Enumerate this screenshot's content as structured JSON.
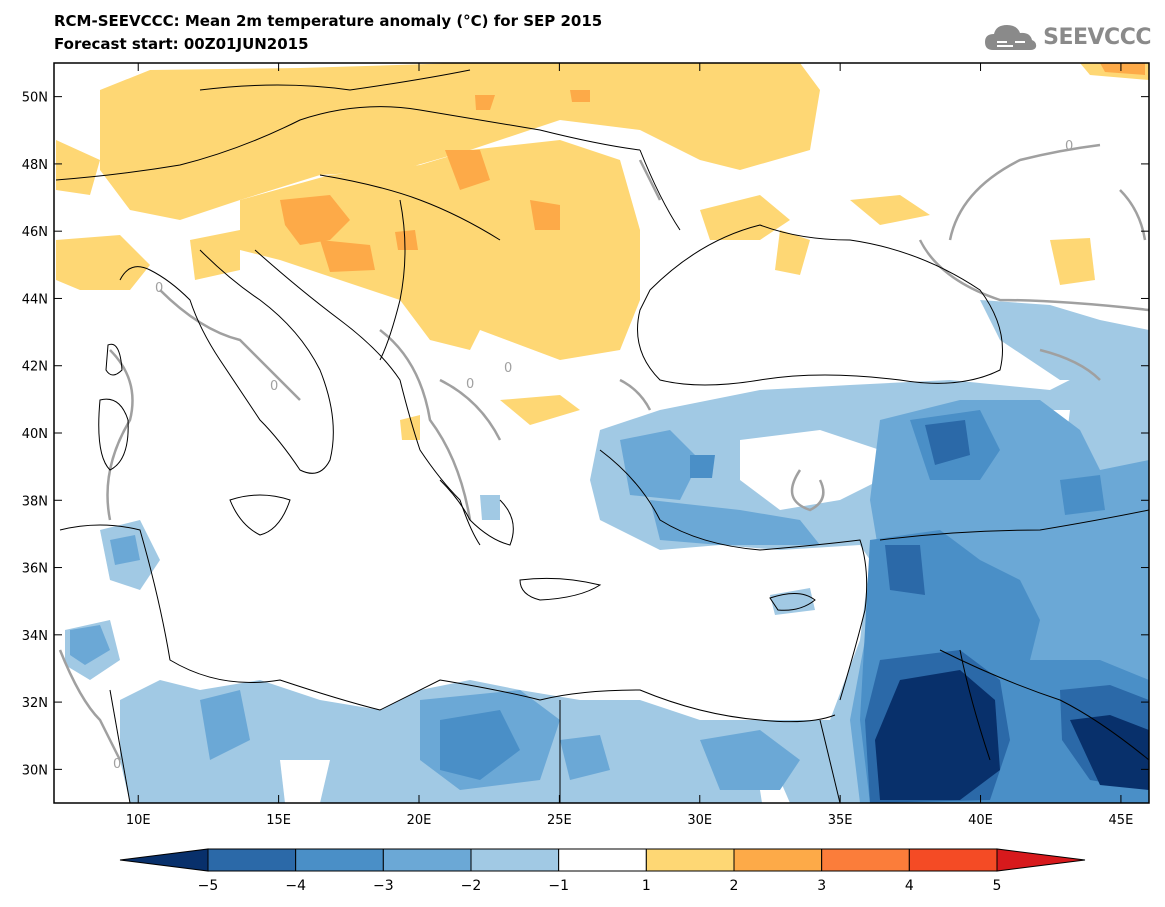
{
  "title": {
    "line1": "RCM-SEEVCCC: Mean 2m temperature anomaly (°C) for SEP 2015",
    "line2": "Forecast start: 00Z01JUN2015"
  },
  "logo": {
    "text": "SEEVCCC",
    "icon": "cloud-icon"
  },
  "map": {
    "lon_range": [
      7,
      46
    ],
    "lat_range": [
      29,
      51
    ],
    "lat_ticks": [
      {
        "value": 50,
        "label": "50N"
      },
      {
        "value": 48,
        "label": "48N"
      },
      {
        "value": 46,
        "label": "46N"
      },
      {
        "value": 44,
        "label": "44N"
      },
      {
        "value": 42,
        "label": "42N"
      },
      {
        "value": 40,
        "label": "40N"
      },
      {
        "value": 38,
        "label": "38N"
      },
      {
        "value": 36,
        "label": "36N"
      },
      {
        "value": 34,
        "label": "34N"
      },
      {
        "value": 32,
        "label": "32N"
      },
      {
        "value": 30,
        "label": "30N"
      }
    ],
    "lon_ticks": [
      {
        "value": 10,
        "label": "10E"
      },
      {
        "value": 15,
        "label": "15E"
      },
      {
        "value": 20,
        "label": "20E"
      },
      {
        "value": 25,
        "label": "25E"
      },
      {
        "value": 30,
        "label": "30E"
      },
      {
        "value": 35,
        "label": "35E"
      },
      {
        "value": 40,
        "label": "40E"
      },
      {
        "value": 45,
        "label": "45E"
      }
    ],
    "contour_labels": [
      "0",
      "0",
      "0",
      "0",
      "0",
      "0"
    ]
  },
  "colorbar": {
    "labels": [
      "−5",
      "−4",
      "−3",
      "−2",
      "−1",
      "1",
      "2",
      "3",
      "4",
      "5"
    ],
    "colors": [
      "#08306b",
      "#2b69a8",
      "#4a8fc7",
      "#6ba8d6",
      "#a1c9e4",
      "#ffffff",
      "#fed774",
      "#fdaa48",
      "#fb7d3a",
      "#f44b25",
      "#d7191c"
    ]
  }
}
